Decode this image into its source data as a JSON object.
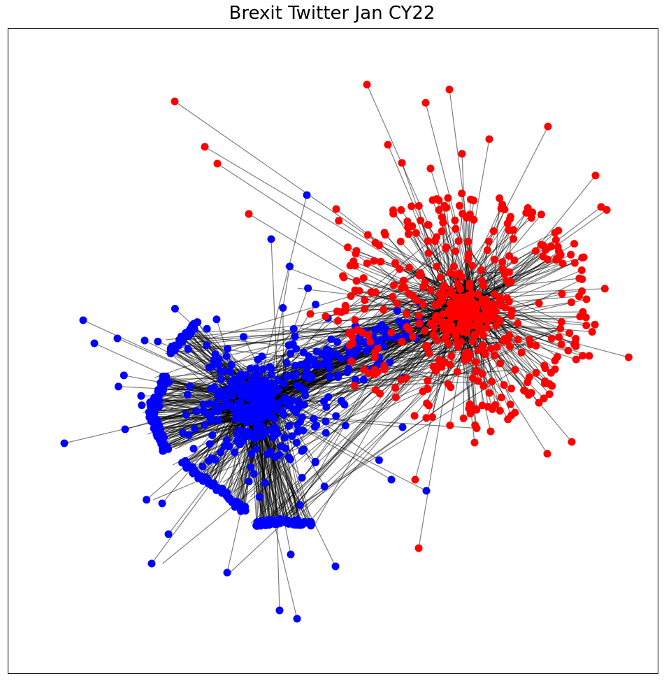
{
  "figure": {
    "title": "Brexit Twitter Jan CY22"
  },
  "colors": {
    "community_a": "#0000ff",
    "community_b": "#ff0000",
    "edge": "#000000",
    "frame": "#000000",
    "background": "#ffffff"
  },
  "chart_data": {
    "type": "network",
    "title": "Brexit Twitter Jan CY22",
    "axes_visible": false,
    "grid": false,
    "communities": [
      {
        "color": "blue"
      },
      {
        "color": "red"
      }
    ]
  }
}
